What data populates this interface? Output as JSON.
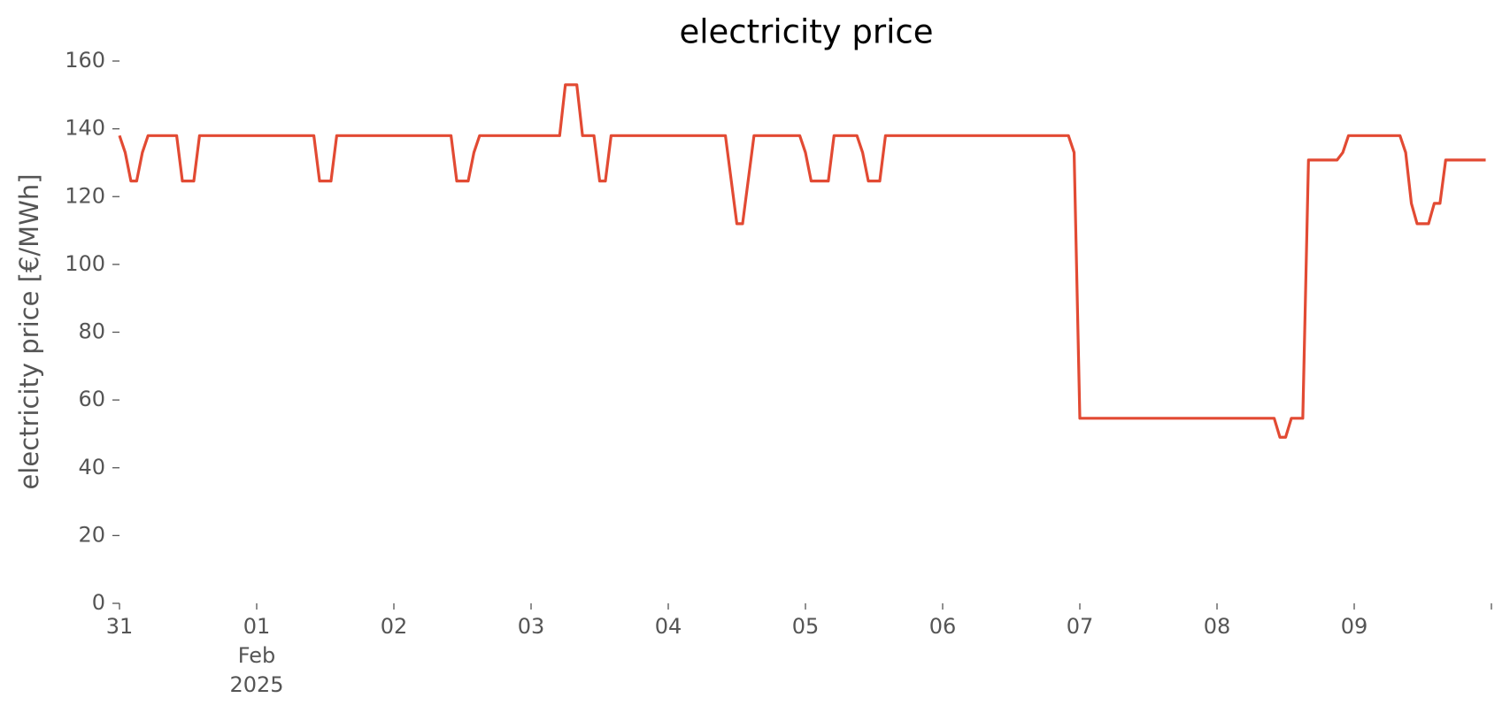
{
  "chart_data": {
    "type": "line",
    "title": "electricity price",
    "ylabel": "electricity price [€/MWh]",
    "x": [
      "2025-01-31T00:00",
      "2025-01-31T01:00",
      "2025-01-31T02:00",
      "2025-01-31T03:00",
      "2025-01-31T04:00",
      "2025-01-31T05:00",
      "2025-01-31T10:00",
      "2025-01-31T11:00",
      "2025-01-31T13:00",
      "2025-01-31T14:00",
      "2025-02-01T10:00",
      "2025-02-01T11:00",
      "2025-02-01T13:00",
      "2025-02-01T14:00",
      "2025-02-02T10:00",
      "2025-02-02T11:00",
      "2025-02-02T13:00",
      "2025-02-02T14:00",
      "2025-02-02T15:00",
      "2025-02-03T05:00",
      "2025-02-03T06:00",
      "2025-02-03T08:00",
      "2025-02-03T09:00",
      "2025-02-03T11:00",
      "2025-02-03T12:00",
      "2025-02-03T13:00",
      "2025-02-03T14:00",
      "2025-02-04T10:00",
      "2025-02-04T12:00",
      "2025-02-04T13:00",
      "2025-02-04T15:00",
      "2025-02-04T23:00",
      "2025-02-05T00:00",
      "2025-02-05T01:00",
      "2025-02-05T04:00",
      "2025-02-05T05:00",
      "2025-02-05T09:00",
      "2025-02-05T10:00",
      "2025-02-05T11:00",
      "2025-02-05T13:00",
      "2025-02-05T14:00",
      "2025-02-06T22:00",
      "2025-02-06T23:00",
      "2025-02-07T00:00",
      "2025-02-08T10:00",
      "2025-02-08T11:00",
      "2025-02-08T12:00",
      "2025-02-08T13:00",
      "2025-02-08T15:00",
      "2025-02-08T16:00",
      "2025-02-08T21:00",
      "2025-02-08T22:00",
      "2025-02-08T23:00",
      "2025-02-09T08:00",
      "2025-02-09T09:00",
      "2025-02-09T10:00",
      "2025-02-09T11:00",
      "2025-02-09T13:00",
      "2025-02-09T14:00",
      "2025-02-09T15:00",
      "2025-02-09T16:00",
      "2025-02-09T23:00"
    ],
    "series": [
      {
        "name": "electricity price",
        "color": "#e24a33",
        "values": [
          138,
          133,
          124.6,
          124.6,
          133,
          138,
          138,
          124.6,
          124.6,
          138,
          138,
          124.6,
          124.6,
          138,
          138,
          124.6,
          124.6,
          133,
          138,
          138,
          153,
          153,
          138,
          138,
          124.6,
          124.6,
          138,
          138,
          112,
          112,
          138,
          138,
          133,
          124.6,
          124.6,
          138,
          138,
          133,
          124.6,
          124.6,
          138,
          138,
          133,
          54.6,
          54.6,
          49,
          49,
          54.6,
          54.6,
          130.8,
          130.8,
          133,
          138,
          138,
          133,
          118,
          112,
          112,
          118,
          118,
          130.8,
          130.8
        ]
      }
    ],
    "xlim": [
      "2025-01-31T00:00",
      "2025-02-10T00:00"
    ],
    "xticks": [
      {
        "value": "2025-01-31T00:00",
        "label": "31"
      },
      {
        "value": "2025-02-01T00:00",
        "label": "01\nFeb\n2025"
      },
      {
        "value": "2025-02-02T00:00",
        "label": "02"
      },
      {
        "value": "2025-02-03T00:00",
        "label": "03"
      },
      {
        "value": "2025-02-04T00:00",
        "label": "04"
      },
      {
        "value": "2025-02-05T00:00",
        "label": "05"
      },
      {
        "value": "2025-02-06T00:00",
        "label": "06"
      },
      {
        "value": "2025-02-07T00:00",
        "label": "07"
      },
      {
        "value": "2025-02-08T00:00",
        "label": "08"
      },
      {
        "value": "2025-02-09T00:00",
        "label": "09"
      },
      {
        "value": "2025-02-10T00:00",
        "label": null
      }
    ],
    "ylim": [
      0,
      160
    ],
    "yticks": [
      0,
      20,
      40,
      60,
      80,
      100,
      120,
      140,
      160
    ],
    "grid": false
  }
}
